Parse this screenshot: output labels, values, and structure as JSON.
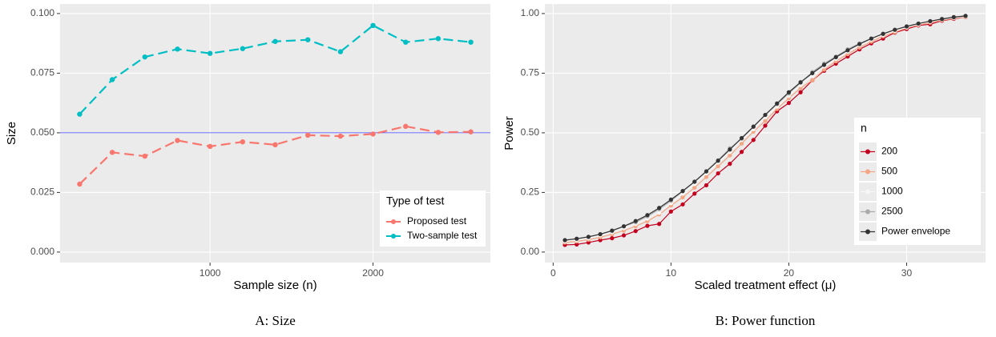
{
  "chart_data": [
    {
      "type": "line",
      "caption": "A: Size",
      "xlabel": "Sample size (n)",
      "ylabel": "Size",
      "x": [
        200,
        400,
        600,
        800,
        1000,
        1200,
        1400,
        1600,
        1800,
        2000,
        2200,
        2400,
        2600
      ],
      "series": [
        {
          "name": "Proposed test",
          "color": "#f8766d",
          "values": [
            0.0285,
            0.0418,
            0.0402,
            0.0468,
            0.0443,
            0.0462,
            0.045,
            0.049,
            0.0486,
            0.0495,
            0.0527,
            0.0502,
            0.0504
          ]
        },
        {
          "name": "Two-sample test",
          "color": "#00bfc4",
          "values": [
            0.0578,
            0.0723,
            0.0818,
            0.0851,
            0.0833,
            0.0853,
            0.0883,
            0.089,
            0.084,
            0.095,
            0.088,
            0.0895,
            0.088
          ]
        }
      ],
      "line_style": "dashed",
      "hline": 0.05,
      "hline_color": "#3b3bff",
      "xlim": [
        80,
        2720
      ],
      "xticks": [
        1000,
        2000
      ],
      "ylim": [
        -0.0044,
        0.104
      ],
      "yticks": [
        {
          "value": 0,
          "label": "0.000"
        },
        {
          "value": 0.025,
          "label": "0.025"
        },
        {
          "value": 0.05,
          "label": "0.050"
        },
        {
          "value": 0.075,
          "label": "0.075"
        },
        {
          "value": 0.1,
          "label": "0.100"
        }
      ],
      "grid": true,
      "legend_title": "Type of test",
      "legend_position": "bottom-right"
    },
    {
      "type": "line",
      "caption": "B: Power function",
      "xlabel": "Scaled treatment effect (μ)",
      "ylabel": "Power",
      "x": [
        1,
        2,
        3,
        4,
        5,
        6,
        7,
        8,
        9,
        10,
        11,
        12,
        13,
        14,
        15,
        16,
        17,
        18,
        19,
        20,
        21,
        22,
        23,
        24,
        25,
        26,
        27,
        28,
        29,
        30,
        31,
        32,
        33,
        34,
        35
      ],
      "series": [
        {
          "name": "200",
          "color": "#c4001f",
          "values": [
            0.03,
            0.032,
            0.04,
            0.05,
            0.058,
            0.07,
            0.088,
            0.11,
            0.118,
            0.17,
            0.2,
            0.245,
            0.28,
            0.33,
            0.37,
            0.42,
            0.47,
            0.53,
            0.59,
            0.625,
            0.67,
            0.72,
            0.76,
            0.79,
            0.82,
            0.85,
            0.875,
            0.895,
            0.92,
            0.935,
            0.95,
            0.955,
            0.97,
            0.978,
            0.985
          ]
        },
        {
          "name": "500",
          "color": "#f4a582",
          "values": [
            0.04,
            0.045,
            0.052,
            0.062,
            0.075,
            0.09,
            0.108,
            0.13,
            0.158,
            0.195,
            0.23,
            0.27,
            0.315,
            0.36,
            0.405,
            0.455,
            0.505,
            0.55,
            0.6,
            0.645,
            0.688,
            0.72,
            0.765,
            0.8,
            0.83,
            0.858,
            0.882,
            0.905,
            0.922,
            0.94,
            0.952,
            0.962,
            0.972,
            0.98,
            0.985
          ]
        },
        {
          "name": "1000",
          "color": "#f7f7f7",
          "values": [
            0.045,
            0.05,
            0.058,
            0.07,
            0.083,
            0.1,
            0.118,
            0.14,
            0.165,
            0.205,
            0.245,
            0.285,
            0.33,
            0.375,
            0.42,
            0.47,
            0.515,
            0.565,
            0.61,
            0.655,
            0.7,
            0.74,
            0.778,
            0.81,
            0.84,
            0.868,
            0.89,
            0.91,
            0.928,
            0.942,
            0.955,
            0.966,
            0.975,
            0.982,
            0.988
          ]
        },
        {
          "name": "2500",
          "color": "#aaaaaa",
          "values": [
            0.05,
            0.055,
            0.063,
            0.075,
            0.088,
            0.108,
            0.125,
            0.15,
            0.18,
            0.215,
            0.255,
            0.295,
            0.34,
            0.385,
            0.435,
            0.475,
            0.525,
            0.575,
            0.62,
            0.665,
            0.71,
            0.755,
            0.79,
            0.82,
            0.85,
            0.875,
            0.895,
            0.915,
            0.932,
            0.946,
            0.958,
            0.968,
            0.976,
            0.984,
            0.99
          ]
        },
        {
          "name": "Power envelope",
          "color": "#333333",
          "values": [
            0.05,
            0.056,
            0.064,
            0.075,
            0.09,
            0.108,
            0.13,
            0.155,
            0.185,
            0.22,
            0.256,
            0.295,
            0.338,
            0.383,
            0.43,
            0.478,
            0.526,
            0.575,
            0.623,
            0.67,
            0.712,
            0.75,
            0.785,
            0.817,
            0.846,
            0.872,
            0.895,
            0.915,
            0.932,
            0.946,
            0.958,
            0.968,
            0.977,
            0.985,
            0.99
          ]
        }
      ],
      "line_style": "solid",
      "xlim": [
        -0.7,
        36.7
      ],
      "xticks": [
        0,
        10,
        20,
        30
      ],
      "ylim": [
        -0.044,
        1.04
      ],
      "yticks": [
        {
          "value": 0,
          "label": "0.00"
        },
        {
          "value": 0.25,
          "label": "0.25"
        },
        {
          "value": 0.5,
          "label": "0.50"
        },
        {
          "value": 0.75,
          "label": "0.75"
        },
        {
          "value": 1,
          "label": "1.00"
        }
      ],
      "grid": true,
      "legend_title": "n",
      "legend_position": "right"
    }
  ]
}
